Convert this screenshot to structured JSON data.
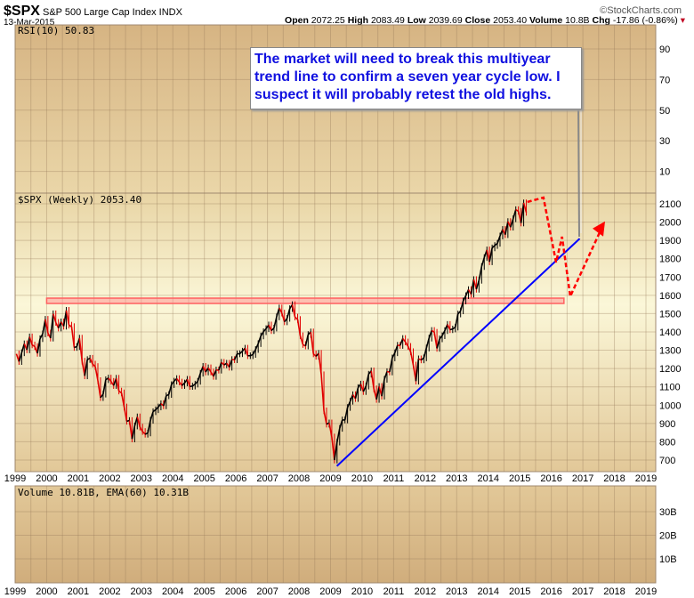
{
  "header": {
    "symbol": "$SPX",
    "name": "S&P 500 Large Cap Index",
    "exchange": "INDX",
    "date": "13-Mar-2015",
    "copyright": "©StockCharts.com",
    "open_label": "Open",
    "open": "2072.25",
    "high_label": "High",
    "high": "2083.49",
    "low_label": "Low",
    "low": "2039.69",
    "close_label": "Close",
    "close": "2053.40",
    "volume_label": "Volume",
    "volume": "10.8B",
    "chg_label": "Chg",
    "chg": "-17.86 (-0.86%)"
  },
  "annotation": "The market will need to break this multiyear trend line to confirm a seven year cycle low. I suspect it will probably retest the old highs.",
  "colors": {
    "up": "#000000",
    "down": "#e00000",
    "trendline": "#0000ff",
    "projection": "#ff0000",
    "resistance": "#ff6060",
    "annotation_text": "#1010e0"
  },
  "chart_data": [
    {
      "type": "line",
      "panel": "rsi",
      "label": "RSI(10) 50.83",
      "yticks": [
        90,
        70,
        50,
        30,
        10
      ],
      "ylim": [
        0,
        100
      ],
      "grid": true
    },
    {
      "type": "line",
      "panel": "price",
      "label": "$SPX (Weekly) 2053.40",
      "xlim": [
        1999,
        2019.3
      ],
      "xticks": [
        1999,
        2000,
        2001,
        2002,
        2003,
        2004,
        2005,
        2006,
        2007,
        2008,
        2009,
        2010,
        2011,
        2012,
        2013,
        2014,
        2015,
        2016,
        2017,
        2018,
        2019
      ],
      "ylim": [
        650,
        2160
      ],
      "yticks": [
        2100,
        2000,
        1900,
        1800,
        1700,
        1600,
        1500,
        1400,
        1300,
        1200,
        1100,
        1000,
        900,
        800,
        700
      ],
      "grid": true,
      "start": "1999-01",
      "frequency": "monthly",
      "close": [
        1280,
        1238,
        1286,
        1335,
        1302,
        1373,
        1329,
        1320,
        1283,
        1363,
        1389,
        1469,
        1394,
        1366,
        1499,
        1452,
        1421,
        1455,
        1431,
        1518,
        1437,
        1429,
        1315,
        1320,
        1366,
        1240,
        1160,
        1249,
        1256,
        1224,
        1211,
        1134,
        1041,
        1060,
        1139,
        1148,
        1130,
        1107,
        1147,
        1077,
        1067,
        990,
        912,
        916,
        815,
        886,
        936,
        880,
        856,
        841,
        848,
        917,
        964,
        975,
        990,
        1008,
        996,
        1051,
        1058,
        1112,
        1131,
        1145,
        1126,
        1107,
        1121,
        1141,
        1102,
        1104,
        1115,
        1130,
        1174,
        1212,
        1181,
        1204,
        1181,
        1157,
        1192,
        1191,
        1234,
        1220,
        1229,
        1207,
        1249,
        1248,
        1280,
        1281,
        1295,
        1311,
        1270,
        1270,
        1277,
        1304,
        1336,
        1378,
        1401,
        1418,
        1438,
        1407,
        1421,
        1482,
        1531,
        1503,
        1455,
        1474,
        1527,
        1549,
        1481,
        1468,
        1379,
        1331,
        1323,
        1386,
        1400,
        1280,
        1267,
        1283,
        1166,
        969,
        896,
        903,
        826,
        700,
        798,
        873,
        919,
        919,
        987,
        1021,
        1057,
        1036,
        1096,
        1115,
        1074,
        1104,
        1169,
        1187,
        1089,
        1031,
        1102,
        1049,
        1141,
        1183,
        1181,
        1258,
        1286,
        1327,
        1326,
        1364,
        1345,
        1321,
        1292,
        1219,
        1131,
        1253,
        1247,
        1258,
        1312,
        1366,
        1408,
        1398,
        1310,
        1362,
        1379,
        1407,
        1441,
        1412,
        1416,
        1426,
        1498,
        1515,
        1569,
        1598,
        1631,
        1606,
        1686,
        1633,
        1682,
        1757,
        1806,
        1848,
        1783,
        1859,
        1872,
        1884,
        1924,
        1960,
        1931,
        2003,
        1972,
        2018,
        2068,
        2059,
        1995,
        2105,
        2053
      ],
      "trendline": [
        [
          2009.2,
          667
        ],
        [
          2016.9,
          1910
        ]
      ],
      "resistance": {
        "from": 2000.0,
        "to": 2016.4,
        "level": 1570
      },
      "projection": [
        [
          2015.24,
          2110
        ],
        [
          2015.75,
          2134
        ],
        [
          2016.15,
          1780
        ],
        [
          2016.34,
          1920
        ],
        [
          2016.6,
          1594
        ],
        [
          2017.59,
          1965
        ]
      ]
    },
    {
      "type": "bar",
      "panel": "volume",
      "label": "Volume 10.81B, EMA(60) 10.31B",
      "yticks": [
        "30B",
        "20B",
        "10B"
      ],
      "yvalues": [
        30,
        20,
        10
      ],
      "ylim": [
        0,
        41
      ],
      "grid": true
    }
  ]
}
